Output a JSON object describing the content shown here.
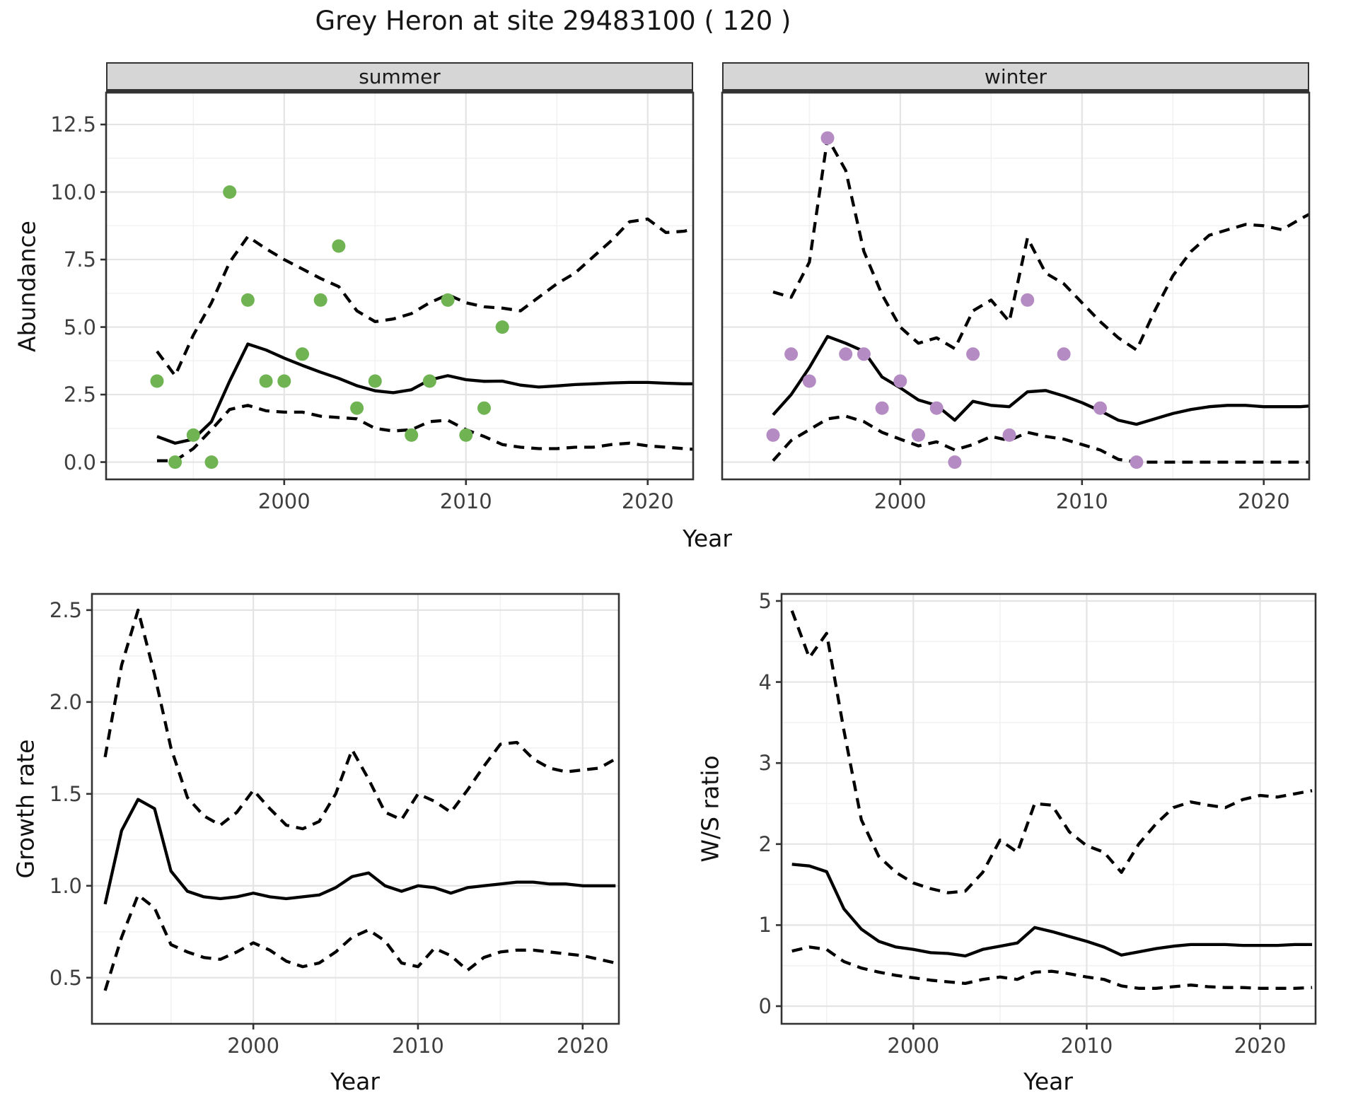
{
  "title": "Grey Heron at site 29483100 ( 120 )",
  "labels": {
    "abundance": "Abundance",
    "growth_rate": "Growth rate",
    "ws_ratio": "W/S ratio",
    "year": "Year"
  },
  "colors": {
    "summer_points": "#6FB352",
    "winter_points": "#B48BC2",
    "line": "#000000",
    "strip_bg": "#D6D6D6",
    "panel_border": "#333333",
    "grid_major": "#E4E4E4",
    "grid_minor": "#F2F2F2",
    "tick_text": "#3F3F3F"
  },
  "chart_data": [
    {
      "id": "abundance-summer",
      "type": "line",
      "facet_label": "summer",
      "ylabel": "Abundance",
      "xlabel": "Year",
      "xlim": [
        1990.2,
        2022.5
      ],
      "ylim": [
        -0.64,
        13.68
      ],
      "x_ticks": {
        "values": [
          2000,
          2010,
          2020
        ],
        "labels": [
          "2000",
          "2010",
          "2020"
        ]
      },
      "y_ticks": {
        "values": [
          0,
          2.5,
          5,
          7.5,
          10,
          12.5
        ],
        "labels": [
          "0.0",
          "2.5",
          "5.0",
          "7.5",
          "10.0",
          "12.5"
        ],
        "show": true
      },
      "x_minor": [
        1995,
        2005,
        2015
      ],
      "y_minor": [
        1.25,
        3.75,
        6.25,
        8.75,
        11.25
      ],
      "series": [
        {
          "name": "upper-ci",
          "style": "dashed",
          "x_start": 1993,
          "values": [
            4.1,
            3.2,
            4.7,
            5.9,
            7.4,
            8.35,
            7.9,
            7.5,
            7.15,
            6.8,
            6.5,
            5.6,
            5.2,
            5.3,
            5.5,
            5.9,
            6.2,
            5.9,
            5.75,
            5.7,
            5.6,
            6.1,
            6.6,
            7.0,
            7.6,
            8.2,
            8.9,
            9.0,
            8.5,
            8.55,
            8.7
          ]
        },
        {
          "name": "median",
          "style": "solid",
          "x_start": 1993,
          "values": [
            0.95,
            0.7,
            0.85,
            1.5,
            3.0,
            4.37,
            4.15,
            3.85,
            3.58,
            3.33,
            3.1,
            2.83,
            2.64,
            2.57,
            2.68,
            3.04,
            3.2,
            3.05,
            2.99,
            3.0,
            2.85,
            2.78,
            2.82,
            2.87,
            2.9,
            2.93,
            2.95,
            2.95,
            2.92,
            2.9,
            2.9
          ]
        },
        {
          "name": "lower-ci",
          "style": "dashed",
          "x_start": 1993,
          "values": [
            0.05,
            0.05,
            0.5,
            1.2,
            1.95,
            2.1,
            1.9,
            1.85,
            1.85,
            1.7,
            1.65,
            1.6,
            1.25,
            1.15,
            1.2,
            1.5,
            1.55,
            1.2,
            0.95,
            0.65,
            0.55,
            0.5,
            0.5,
            0.55,
            0.55,
            0.65,
            0.7,
            0.6,
            0.55,
            0.5,
            0.45
          ]
        }
      ],
      "points": {
        "color": "#6FB352",
        "data": [
          [
            1993,
            3
          ],
          [
            1994,
            0
          ],
          [
            1995,
            1
          ],
          [
            1996,
            0
          ],
          [
            1997,
            10
          ],
          [
            1998,
            6
          ],
          [
            1999,
            3
          ],
          [
            2000,
            3
          ],
          [
            2001,
            4
          ],
          [
            2002,
            6
          ],
          [
            2003,
            8
          ],
          [
            2004,
            2
          ],
          [
            2005,
            3
          ],
          [
            2007,
            1
          ],
          [
            2008,
            3
          ],
          [
            2009,
            6
          ],
          [
            2010,
            1
          ],
          [
            2011,
            2
          ],
          [
            2012,
            5
          ]
        ]
      }
    },
    {
      "id": "abundance-winter",
      "type": "line",
      "facet_label": "winter",
      "ylabel": "Abundance",
      "xlabel": "Year",
      "xlim": [
        1990.2,
        2022.5
      ],
      "ylim": [
        -0.64,
        13.68
      ],
      "x_ticks": {
        "values": [
          2000,
          2010,
          2020
        ],
        "labels": [
          "2000",
          "2010",
          "2020"
        ]
      },
      "y_ticks": {
        "values": [
          0,
          2.5,
          5,
          7.5,
          10,
          12.5
        ],
        "labels": [
          "0.0",
          "2.5",
          "5.0",
          "7.5",
          "10.0",
          "12.5"
        ],
        "show": false
      },
      "x_minor": [
        1995,
        2005,
        2015
      ],
      "y_minor": [
        1.25,
        3.75,
        6.25,
        8.75,
        11.25
      ],
      "series": [
        {
          "name": "upper-ci",
          "style": "dashed",
          "x_start": 1993,
          "values": [
            6.3,
            6.1,
            7.4,
            12.0,
            10.8,
            7.8,
            6.2,
            5.0,
            4.4,
            4.6,
            4.2,
            5.6,
            6.0,
            5.2,
            8.3,
            7.0,
            6.6,
            5.9,
            5.2,
            4.6,
            4.15,
            5.6,
            6.9,
            7.8,
            8.4,
            8.6,
            8.8,
            8.75,
            8.6,
            9.0,
            9.35
          ]
        },
        {
          "name": "median",
          "style": "solid",
          "x_start": 1993,
          "values": [
            1.75,
            2.5,
            3.5,
            4.65,
            4.4,
            4.1,
            3.15,
            2.75,
            2.3,
            2.1,
            1.55,
            2.25,
            2.1,
            2.05,
            2.6,
            2.65,
            2.45,
            2.2,
            1.9,
            1.55,
            1.4,
            1.6,
            1.8,
            1.95,
            2.05,
            2.1,
            2.1,
            2.05,
            2.05,
            2.05,
            2.1
          ]
        },
        {
          "name": "lower-ci",
          "style": "dashed",
          "x_start": 1993,
          "values": [
            0.05,
            0.8,
            1.2,
            1.6,
            1.7,
            1.5,
            1.1,
            0.85,
            0.6,
            0.75,
            0.45,
            0.65,
            0.95,
            0.8,
            1.1,
            0.95,
            0.85,
            0.65,
            0.45,
            0.1,
            0.0,
            0.0,
            0.0,
            0.0,
            0.0,
            0.0,
            0.0,
            0.0,
            0.0,
            0.0,
            0.0
          ]
        }
      ],
      "points": {
        "color": "#B48BC2",
        "data": [
          [
            1993,
            1
          ],
          [
            1994,
            4
          ],
          [
            1995,
            3
          ],
          [
            1996,
            12
          ],
          [
            1997,
            4
          ],
          [
            1998,
            4
          ],
          [
            1999,
            2
          ],
          [
            2000,
            3
          ],
          [
            2001,
            1
          ],
          [
            2002,
            2
          ],
          [
            2003,
            0
          ],
          [
            2004,
            4
          ],
          [
            2006,
            1
          ],
          [
            2007,
            6
          ],
          [
            2009,
            4
          ],
          [
            2011,
            2
          ],
          [
            2013,
            0
          ]
        ]
      }
    },
    {
      "id": "growth-rate",
      "type": "line",
      "facet_label": "",
      "ylabel": "Growth rate",
      "xlabel": "Year",
      "xlim": [
        1990.2,
        2022.2
      ],
      "ylim": [
        0.249,
        2.588
      ],
      "x_ticks": {
        "values": [
          2000,
          2010,
          2020
        ],
        "labels": [
          "2000",
          "2010",
          "2020"
        ]
      },
      "y_ticks": {
        "values": [
          0.5,
          1.0,
          1.5,
          2.0,
          2.5
        ],
        "labels": [
          "0.5",
          "1.0",
          "1.5",
          "2.0",
          "2.5"
        ],
        "show": true
      },
      "x_minor": [
        1995,
        2005,
        2015
      ],
      "y_minor": [
        0.75,
        1.25,
        1.75,
        2.25
      ],
      "series": [
        {
          "name": "upper-ci",
          "style": "dashed",
          "x_start": 1991,
          "values": [
            1.7,
            2.2,
            2.5,
            2.15,
            1.75,
            1.48,
            1.38,
            1.33,
            1.4,
            1.52,
            1.42,
            1.33,
            1.31,
            1.35,
            1.5,
            1.74,
            1.58,
            1.4,
            1.36,
            1.5,
            1.46,
            1.4,
            1.52,
            1.65,
            1.77,
            1.78,
            1.69,
            1.64,
            1.62,
            1.63,
            1.64,
            1.69
          ]
        },
        {
          "name": "median",
          "style": "solid",
          "x_start": 1991,
          "values": [
            0.9,
            1.3,
            1.47,
            1.42,
            1.08,
            0.97,
            0.94,
            0.93,
            0.94,
            0.96,
            0.94,
            0.93,
            0.94,
            0.95,
            0.99,
            1.05,
            1.07,
            1.0,
            0.97,
            1.0,
            0.99,
            0.96,
            0.99,
            1.0,
            1.01,
            1.02,
            1.02,
            1.01,
            1.01,
            1.0,
            1.0,
            1.0
          ]
        },
        {
          "name": "lower-ci",
          "style": "dashed",
          "x_start": 1991,
          "values": [
            0.43,
            0.72,
            0.95,
            0.88,
            0.68,
            0.64,
            0.61,
            0.6,
            0.64,
            0.69,
            0.65,
            0.59,
            0.56,
            0.58,
            0.64,
            0.72,
            0.76,
            0.7,
            0.58,
            0.56,
            0.66,
            0.62,
            0.54,
            0.61,
            0.64,
            0.65,
            0.65,
            0.64,
            0.63,
            0.62,
            0.6,
            0.58
          ]
        }
      ],
      "points": null
    },
    {
      "id": "ws-ratio",
      "type": "line",
      "facet_label": "",
      "ylabel": "W/S ratio",
      "xlabel": "Year",
      "xlim": [
        1992.4,
        2023.2
      ],
      "ylim": [
        -0.218,
        5.087
      ],
      "x_ticks": {
        "values": [
          2000,
          2010,
          2020
        ],
        "labels": [
          "2000",
          "2010",
          "2020"
        ]
      },
      "y_ticks": {
        "values": [
          0,
          1,
          2,
          3,
          4,
          5
        ],
        "labels": [
          "0",
          "1",
          "2",
          "3",
          "4",
          "5"
        ],
        "show": true
      },
      "x_minor": [
        1995,
        2005,
        2015
      ],
      "y_minor": [
        0.5,
        1.5,
        2.5,
        3.5,
        4.5
      ],
      "series": [
        {
          "name": "upper-ci",
          "style": "dashed",
          "x_start": 1993,
          "values": [
            4.88,
            4.3,
            4.6,
            3.4,
            2.3,
            1.85,
            1.65,
            1.52,
            1.45,
            1.4,
            1.42,
            1.65,
            2.05,
            1.9,
            2.5,
            2.48,
            2.15,
            1.98,
            1.9,
            1.65,
            2.0,
            2.25,
            2.45,
            2.52,
            2.48,
            2.45,
            2.55,
            2.6,
            2.58,
            2.62,
            2.66
          ]
        },
        {
          "name": "median",
          "style": "solid",
          "x_start": 1993,
          "values": [
            1.75,
            1.73,
            1.66,
            1.2,
            0.95,
            0.8,
            0.73,
            0.7,
            0.66,
            0.65,
            0.62,
            0.7,
            0.74,
            0.78,
            0.97,
            0.92,
            0.86,
            0.8,
            0.73,
            0.63,
            0.67,
            0.71,
            0.74,
            0.76,
            0.76,
            0.76,
            0.75,
            0.75,
            0.75,
            0.76,
            0.76
          ]
        },
        {
          "name": "lower-ci",
          "style": "dashed",
          "x_start": 1993,
          "values": [
            0.68,
            0.73,
            0.7,
            0.55,
            0.47,
            0.42,
            0.38,
            0.35,
            0.32,
            0.3,
            0.28,
            0.33,
            0.36,
            0.33,
            0.42,
            0.43,
            0.4,
            0.36,
            0.33,
            0.25,
            0.22,
            0.22,
            0.24,
            0.26,
            0.24,
            0.23,
            0.23,
            0.22,
            0.22,
            0.22,
            0.23
          ]
        }
      ],
      "points": null
    }
  ]
}
